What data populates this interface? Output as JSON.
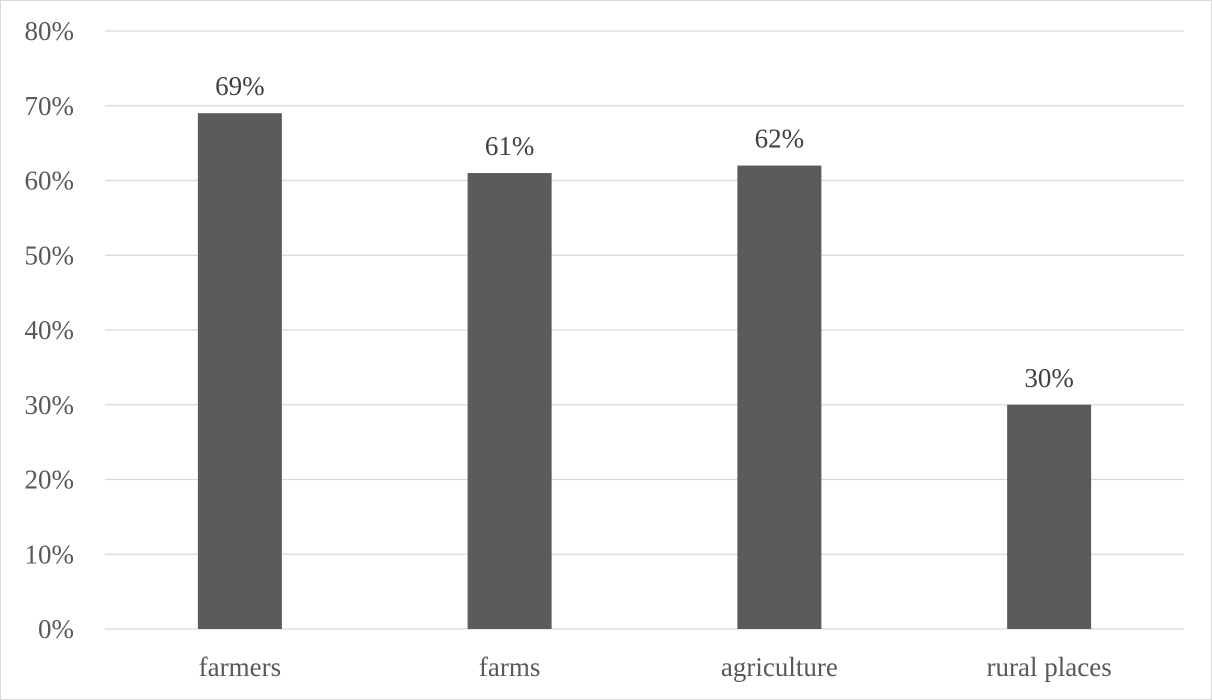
{
  "chart_data": {
    "type": "bar",
    "title": "",
    "xlabel": "",
    "ylabel": "",
    "categories": [
      "farmers",
      "farms",
      "agriculture",
      "rural places"
    ],
    "values": [
      69,
      61,
      62,
      30
    ],
    "value_labels": [
      "69%",
      "61%",
      "62%",
      "30%"
    ],
    "ylim": [
      0,
      80
    ],
    "y_ticks": [
      0,
      10,
      20,
      30,
      40,
      50,
      60,
      70,
      80
    ],
    "y_tick_labels": [
      "0%",
      "10%",
      "20%",
      "30%",
      "40%",
      "50%",
      "60%",
      "70%",
      "80%"
    ],
    "grid": true,
    "legend": "none",
    "bar_color": "#5b5b5b",
    "grid_color": "#d9d9d9"
  }
}
